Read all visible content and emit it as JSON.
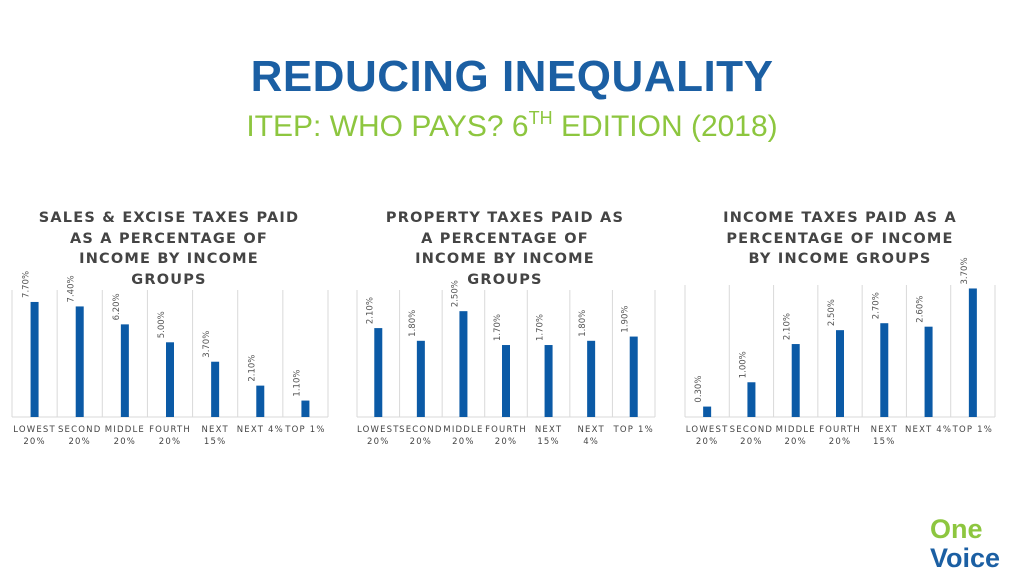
{
  "header": {
    "title": "REDUCING INEQUALITY",
    "subtitle_main": "ITEP: WHO PAYS? 6",
    "subtitle_sup": "TH",
    "subtitle_tail": " EDITION (2018)"
  },
  "logo": {
    "line1": "One",
    "line2": "Voice"
  },
  "colors": {
    "bar": "#0b5aa6",
    "title": "#1b5fa3",
    "subtitle": "#8dc63f",
    "grid": "#d9d9d9",
    "text": "#444444"
  },
  "chart_data": [
    {
      "type": "bar",
      "title": "SALES & EXCISE TAXES PAID\nAS A PERCENTAGE OF\nINCOME BY INCOME\nGROUPS",
      "categories": [
        [
          "LOWEST",
          "20%"
        ],
        [
          "SECOND",
          "20%"
        ],
        [
          "MIDDLE",
          "20%"
        ],
        [
          "FOURTH",
          "20%"
        ],
        [
          "NEXT",
          "15%"
        ],
        [
          "NEXT 4%"
        ],
        [
          "TOP 1%"
        ]
      ],
      "values": [
        7.7,
        7.4,
        6.2,
        5.0,
        3.7,
        2.1,
        1.1
      ],
      "data_labels": [
        "7.70%",
        "7.40%",
        "6.20%",
        "5.00%",
        "3.70%",
        "2.10%",
        "1.10%"
      ],
      "ylim": [
        0,
        8.5
      ],
      "grid": "vertical"
    },
    {
      "type": "bar",
      "title": "PROPERTY TAXES PAID AS\nA PERCENTAGE OF\nINCOME BY INCOME\nGROUPS",
      "categories": [
        [
          "LOWEST",
          "20%"
        ],
        [
          "SECOND",
          "20%"
        ],
        [
          "MIDDLE",
          "20%"
        ],
        [
          "FOURTH",
          "20%"
        ],
        [
          "NEXT",
          "15%"
        ],
        [
          "NEXT",
          "4%"
        ],
        [
          "TOP 1%"
        ]
      ],
      "values": [
        2.1,
        1.8,
        2.5,
        1.7,
        1.7,
        1.8,
        1.9
      ],
      "data_labels": [
        "2.10%",
        "1.80%",
        "2.50%",
        "1.70%",
        "1.70%",
        "1.80%",
        "1.90%"
      ],
      "ylim": [
        0,
        3.0
      ],
      "grid": "vertical"
    },
    {
      "type": "bar",
      "title": "INCOME TAXES PAID AS A\nPERCENTAGE OF INCOME\nBY INCOME GROUPS",
      "categories": [
        [
          "LOWEST",
          "20%"
        ],
        [
          "SECOND",
          "20%"
        ],
        [
          "MIDDLE",
          "20%"
        ],
        [
          "FOURTH",
          "20%"
        ],
        [
          "NEXT",
          "15%"
        ],
        [
          "NEXT 4%"
        ],
        [
          "TOP 1%"
        ]
      ],
      "values": [
        0.3,
        1.0,
        2.1,
        2.5,
        2.7,
        2.6,
        3.7
      ],
      "data_labels": [
        "0.30%",
        "1.00%",
        "2.10%",
        "2.50%",
        "2.70%",
        "2.60%",
        "3.70%"
      ],
      "ylim": [
        0,
        3.8
      ],
      "grid": "vertical"
    }
  ]
}
